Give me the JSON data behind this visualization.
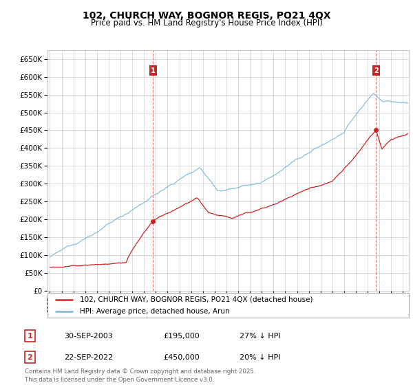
{
  "title": "102, CHURCH WAY, BOGNOR REGIS, PO21 4QX",
  "subtitle": "Price paid vs. HM Land Registry's House Price Index (HPI)",
  "legend_line1": "102, CHURCH WAY, BOGNOR REGIS, PO21 4QX (detached house)",
  "legend_line2": "HPI: Average price, detached house, Arun",
  "annotation1_label": "1",
  "annotation1_date": "30-SEP-2003",
  "annotation1_price": "£195,000",
  "annotation1_hpi": "27% ↓ HPI",
  "annotation2_label": "2",
  "annotation2_date": "22-SEP-2022",
  "annotation2_price": "£450,000",
  "annotation2_hpi": "20% ↓ HPI",
  "footer": "Contains HM Land Registry data © Crown copyright and database right 2025.\nThis data is licensed under the Open Government Licence v3.0.",
  "sale1_year": 2003.75,
  "sale1_value": 195000,
  "sale2_year": 2022.72,
  "sale2_value": 450000,
  "hpi_color": "#7ab8d9",
  "price_color": "#cc2222",
  "annotation_box_color": "#cc2222",
  "background_color": "#ffffff",
  "grid_color": "#cccccc",
  "ylim": [
    0,
    675000
  ],
  "xlim_start": 1994.8,
  "xlim_end": 2025.5
}
